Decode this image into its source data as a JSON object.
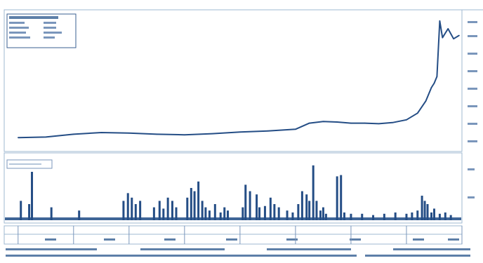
{
  "chart_data": [
    {
      "type": "line",
      "title": "",
      "xlabel": "",
      "ylabel": "",
      "x": [
        1992.0,
        1992.5,
        1993.0,
        1993.5,
        1994.0,
        1994.5,
        1995.0,
        1995.5,
        1996.0,
        1996.5,
        1997.0,
        1997.25,
        1997.5,
        1997.75,
        1998.0,
        1998.25,
        1998.5,
        1998.75,
        1999.0,
        1999.2,
        1999.35,
        1999.45,
        1999.5,
        1999.55,
        1999.6,
        1999.65,
        1999.75,
        1999.85,
        1999.95
      ],
      "series": [
        {
          "values": [
            1,
            1.05,
            1.3,
            1.45,
            1.4,
            1.3,
            1.25,
            1.35,
            1.5,
            1.6,
            1.75,
            2.3,
            2.45,
            2.4,
            2.3,
            2.3,
            2.25,
            2.35,
            2.6,
            3.2,
            4.3,
            5.5,
            5.9,
            6.5,
            11.5,
            10.0,
            10.8,
            9.9,
            10.2
          ]
        }
      ]
    },
    {
      "type": "bar",
      "title": "",
      "xlabel": "",
      "ylabel": "",
      "x": [
        1992.05,
        1992.2,
        1992.25,
        1992.6,
        1993.1,
        1993.9,
        1993.98,
        1994.05,
        1994.12,
        1994.2,
        1994.45,
        1994.55,
        1994.62,
        1994.7,
        1994.78,
        1994.85,
        1995.05,
        1995.12,
        1995.18,
        1995.25,
        1995.32,
        1995.38,
        1995.45,
        1995.55,
        1995.65,
        1995.72,
        1995.78,
        1996.05,
        1996.1,
        1996.18,
        1996.3,
        1996.35,
        1996.45,
        1996.55,
        1996.62,
        1996.7,
        1996.85,
        1996.95,
        1997.05,
        1997.12,
        1997.2,
        1997.25,
        1997.32,
        1997.38,
        1997.45,
        1997.5,
        1997.55,
        1997.75,
        1997.82,
        1997.88,
        1998.0,
        1998.2,
        1998.4,
        1998.6,
        1998.8,
        1999.0,
        1999.1,
        1999.2,
        1999.28,
        1999.33,
        1999.38,
        1999.45,
        1999.5,
        1999.6,
        1999.7,
        1999.8
      ],
      "series": [
        {
          "values": [
            0.3,
            0.25,
            0.75,
            0.2,
            0.15,
            0.3,
            0.42,
            0.35,
            0.25,
            0.3,
            0.2,
            0.3,
            0.18,
            0.35,
            0.3,
            0.2,
            0.35,
            0.5,
            0.45,
            0.6,
            0.3,
            0.2,
            0.15,
            0.25,
            0.12,
            0.2,
            0.15,
            0.2,
            0.55,
            0.45,
            0.4,
            0.2,
            0.22,
            0.35,
            0.25,
            0.2,
            0.15,
            0.12,
            0.25,
            0.45,
            0.4,
            0.3,
            0.85,
            0.3,
            0.15,
            0.2,
            0.1,
            0.68,
            0.7,
            0.12,
            0.1,
            0.1,
            0.08,
            0.1,
            0.12,
            0.1,
            0.12,
            0.15,
            0.38,
            0.3,
            0.25,
            0.12,
            0.18,
            0.1,
            0.12,
            0.08
          ]
        }
      ]
    }
  ]
}
